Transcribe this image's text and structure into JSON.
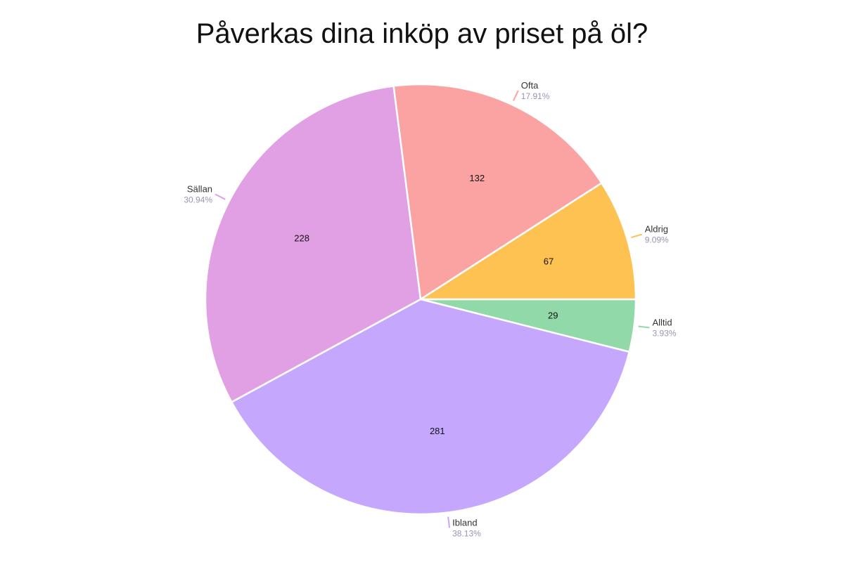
{
  "chart_data": {
    "type": "pie",
    "title": "Påverkas dina inköp av priset på öl?",
    "slices": [
      {
        "label": "Alltid",
        "value": 29,
        "percent": "3.93%",
        "color": "#92d9aa"
      },
      {
        "label": "Ibland",
        "value": 281,
        "percent": "38.13%",
        "color": "#c5a8fd"
      },
      {
        "label": "Sällan",
        "value": 228,
        "percent": "30.94%",
        "color": "#e1a0e3"
      },
      {
        "label": "Ofta",
        "value": 132,
        "percent": "17.91%",
        "color": "#fba3a3"
      },
      {
        "label": "Aldrig",
        "value": 67,
        "percent": "9.09%",
        "color": "#fec253"
      }
    ]
  }
}
